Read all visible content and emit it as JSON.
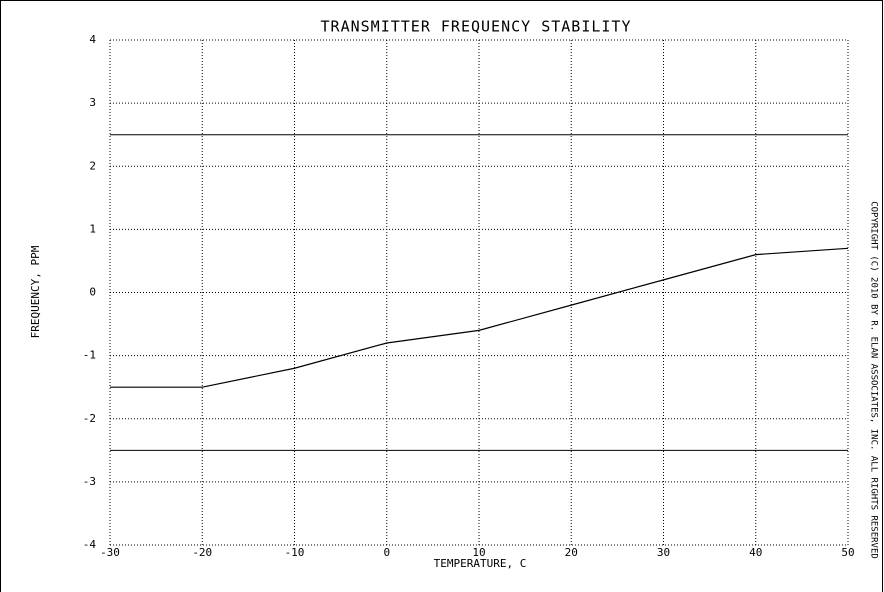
{
  "chart_data": {
    "type": "line",
    "title": "TRANSMITTER FREQUENCY STABILITY",
    "x_label": "TEMPERATURE,  C",
    "y_label": "FREQUENCY, PPM",
    "annotation": "COPYRIGHT (C) 2010 BY R. ELAN ASSOCIATES, INC.  ALL RIGHTS RESERVED",
    "x": [
      -30,
      -20,
      -10,
      0,
      10,
      20,
      30,
      40,
      50
    ],
    "series": [
      {
        "color": "#000000",
        "values": [
          -1.5,
          -1.5,
          -1.2,
          -0.8,
          -0.6,
          -0.2,
          0.2,
          0.6,
          0.7
        ]
      }
    ],
    "reference_lines": [
      2.5,
      -2.5
    ],
    "xlim": [
      -30,
      50
    ],
    "xticks": [
      -30,
      -20,
      -10,
      0,
      10,
      20,
      30,
      40,
      50
    ],
    "ylim": [
      -4,
      4
    ],
    "yticks": [
      -4,
      -3,
      -2,
      -1,
      0,
      1,
      2,
      3,
      4
    ],
    "grid": true
  }
}
